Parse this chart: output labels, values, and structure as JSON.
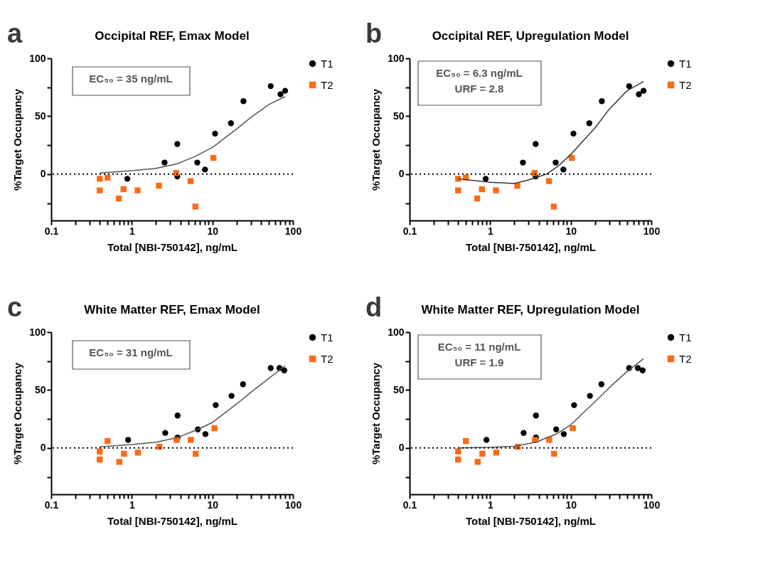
{
  "chart_data": [
    {
      "type": "scatter",
      "title": "Occipital REF, Emax Model",
      "xlabel": "Total [NBI-750142], ng/mL",
      "ylabel": "%Target Occupancy",
      "annotations": [
        "a",
        "EC₅₀ = 35 ng/mL"
      ],
      "log": "x",
      "xlim": [
        0.1,
        100
      ],
      "ylim": [
        -40,
        100
      ],
      "xticks": [
        0.1,
        {
          "value": 0.2,
          "label": null
        },
        {
          "value": 0.3,
          "label": null
        },
        {
          "value": 0.4,
          "label": null
        },
        {
          "value": 0.5,
          "label": null
        },
        {
          "value": 0.6,
          "label": null
        },
        {
          "value": 0.7,
          "label": null
        },
        {
          "value": 0.8,
          "label": null
        },
        {
          "value": 0.9,
          "label": null
        },
        1,
        {
          "value": 2,
          "label": null
        },
        {
          "value": 3,
          "label": null
        },
        {
          "value": 4,
          "label": null
        },
        {
          "value": 5,
          "label": null
        },
        {
          "value": 6,
          "label": null
        },
        {
          "value": 7,
          "label": null
        },
        {
          "value": 8,
          "label": null
        },
        {
          "value": 9,
          "label": null
        },
        10,
        {
          "value": 20,
          "label": null
        },
        {
          "value": 30,
          "label": null
        },
        {
          "value": 40,
          "label": null
        },
        {
          "value": 50,
          "label": null
        },
        {
          "value": 60,
          "label": null
        },
        {
          "value": 70,
          "label": null
        },
        {
          "value": 80,
          "label": null
        },
        {
          "value": 90,
          "label": null
        },
        100
      ],
      "yticks": [
        {
          "value": -25,
          "label": null
        },
        0,
        {
          "value": 25,
          "label": null
        },
        50,
        {
          "value": 75,
          "label": null
        },
        100
      ],
      "grid": false,
      "legend": "right",
      "ref_lines": [
        {
          "axis": "y",
          "value": 0,
          "line_style": "dotted",
          "color": "#000000"
        }
      ],
      "series": [
        {
          "name": "T1",
          "type": "scatter",
          "marker": "circle",
          "color": "#000000",
          "x": [
            0.88,
            2.55,
            3.67,
            3.67,
            6.5,
            8.1,
            10.8,
            17,
            24.3,
            53,
            70,
            80
          ],
          "values": [
            -4,
            10,
            26,
            -2,
            10,
            4,
            35,
            44,
            63,
            76,
            69,
            72
          ]
        },
        {
          "name": "T2",
          "marker": "square",
          "color": "#ff6a13",
          "x": [
            0.4,
            0.4,
            0.5,
            0.69,
            0.79,
            1.18,
            2.17,
            3.56,
            5.36,
            6.15,
            10.3
          ],
          "values": [
            -4,
            -14,
            -3,
            -21,
            -13,
            -14,
            -10,
            1,
            -6,
            -28,
            14
          ]
        },
        {
          "type": "line",
          "marker": "none",
          "line_style": "solid",
          "color": "#555555",
          "x": [
            0.4,
            1,
            2,
            3.67,
            6,
            10,
            20,
            30,
            50,
            80
          ],
          "values": [
            1,
            3,
            5,
            9,
            15,
            23,
            39,
            49,
            60,
            67
          ]
        }
      ]
    },
    {
      "type": "scatter",
      "title": "Occipital REF, Upregulation Model",
      "xlabel": "Total [NBI-750142], ng/mL",
      "ylabel": "%Target Occupancy",
      "annotations": [
        "b",
        "EC₅₀ = 6.3 ng/mL",
        "URF = 2.8"
      ],
      "log": "x",
      "xlim": [
        0.1,
        100
      ],
      "ylim": [
        -40,
        100
      ],
      "xticks": [
        0.1,
        {
          "value": 0.2,
          "label": null
        },
        {
          "value": 0.3,
          "label": null
        },
        {
          "value": 0.4,
          "label": null
        },
        {
          "value": 0.5,
          "label": null
        },
        {
          "value": 0.6,
          "label": null
        },
        {
          "value": 0.7,
          "label": null
        },
        {
          "value": 0.8,
          "label": null
        },
        {
          "value": 0.9,
          "label": null
        },
        1,
        {
          "value": 2,
          "label": null
        },
        {
          "value": 3,
          "label": null
        },
        {
          "value": 4,
          "label": null
        },
        {
          "value": 5,
          "label": null
        },
        {
          "value": 6,
          "label": null
        },
        {
          "value": 7,
          "label": null
        },
        {
          "value": 8,
          "label": null
        },
        {
          "value": 9,
          "label": null
        },
        10,
        {
          "value": 20,
          "label": null
        },
        {
          "value": 30,
          "label": null
        },
        {
          "value": 40,
          "label": null
        },
        {
          "value": 50,
          "label": null
        },
        {
          "value": 60,
          "label": null
        },
        {
          "value": 70,
          "label": null
        },
        {
          "value": 80,
          "label": null
        },
        {
          "value": 90,
          "label": null
        },
        100
      ],
      "yticks": [
        {
          "value": -25,
          "label": null
        },
        0,
        {
          "value": 25,
          "label": null
        },
        50,
        {
          "value": 75,
          "label": null
        },
        100
      ],
      "grid": false,
      "legend": "right",
      "ref_lines": [
        {
          "axis": "y",
          "value": 0,
          "line_style": "dotted",
          "color": "#000000"
        }
      ],
      "series": [
        {
          "name": "T1",
          "marker": "circle",
          "color": "#000000",
          "x": [
            0.88,
            2.55,
            3.67,
            3.67,
            6.5,
            8.1,
            10.8,
            17,
            24.3,
            53,
            70,
            80
          ],
          "values": [
            -4,
            10,
            26,
            -2,
            10,
            4,
            35,
            44,
            63,
            76,
            69,
            72
          ]
        },
        {
          "name": "T2",
          "marker": "square",
          "color": "#ff6a13",
          "x": [
            0.4,
            0.4,
            0.5,
            0.69,
            0.79,
            1.18,
            2.17,
            3.56,
            5.36,
            6.15,
            10.3
          ],
          "values": [
            -4,
            -14,
            -3,
            -21,
            -13,
            -14,
            -10,
            1,
            -6,
            -28,
            14
          ]
        },
        {
          "type": "line",
          "marker": "none",
          "line_style": "solid",
          "color": "#333333",
          "x": [
            0.4,
            1,
            2,
            3,
            5,
            7,
            10,
            20,
            30,
            50,
            80
          ],
          "values": [
            -4,
            -7,
            -8,
            -5,
            0,
            7,
            17,
            40,
            56,
            72,
            80
          ]
        }
      ]
    },
    {
      "type": "scatter",
      "title": "White Matter REF, Emax Model",
      "xlabel": "Total [NBI-750142], ng/mL",
      "ylabel": "%Target Occupancy",
      "annotations": [
        "c",
        "EC₅₀ = 31 ng/mL"
      ],
      "log": "x",
      "xlim": [
        0.1,
        100
      ],
      "ylim": [
        -40,
        100
      ],
      "xticks": [
        0.1,
        {
          "value": 0.2,
          "label": null
        },
        {
          "value": 0.3,
          "label": null
        },
        {
          "value": 0.4,
          "label": null
        },
        {
          "value": 0.5,
          "label": null
        },
        {
          "value": 0.6,
          "label": null
        },
        {
          "value": 0.7,
          "label": null
        },
        {
          "value": 0.8,
          "label": null
        },
        {
          "value": 0.9,
          "label": null
        },
        1,
        {
          "value": 2,
          "label": null
        },
        {
          "value": 3,
          "label": null
        },
        {
          "value": 4,
          "label": null
        },
        {
          "value": 5,
          "label": null
        },
        {
          "value": 6,
          "label": null
        },
        {
          "value": 7,
          "label": null
        },
        {
          "value": 8,
          "label": null
        },
        {
          "value": 9,
          "label": null
        },
        10,
        {
          "value": 20,
          "label": null
        },
        {
          "value": 30,
          "label": null
        },
        {
          "value": 40,
          "label": null
        },
        {
          "value": 50,
          "label": null
        },
        {
          "value": 60,
          "label": null
        },
        {
          "value": 70,
          "label": null
        },
        {
          "value": 80,
          "label": null
        },
        {
          "value": 90,
          "label": null
        },
        100
      ],
      "yticks": [
        {
          "value": -25,
          "label": null
        },
        0,
        {
          "value": 25,
          "label": null
        },
        50,
        {
          "value": 75,
          "label": null
        },
        100
      ],
      "grid": false,
      "legend": "right",
      "ref_lines": [
        {
          "axis": "y",
          "value": 0,
          "line_style": "dotted",
          "color": "#000000"
        }
      ],
      "series": [
        {
          "name": "T1",
          "marker": "circle",
          "color": "#000000",
          "x": [
            0.9,
            2.6,
            3.7,
            3.7,
            6.6,
            8.2,
            11,
            17.3,
            24,
            53,
            68,
            78
          ],
          "values": [
            7,
            13,
            28,
            9,
            16,
            12,
            37,
            45,
            55,
            69,
            69,
            67
          ]
        },
        {
          "name": "T2",
          "marker": "square",
          "color": "#ff6a13",
          "x": [
            0.4,
            0.4,
            0.5,
            0.7,
            0.8,
            1.19,
            2.2,
            3.6,
            5.4,
            6.2,
            10.6
          ],
          "values": [
            -3,
            -10,
            6,
            -12,
            -5,
            -4,
            1,
            7,
            7,
            -5,
            17
          ]
        },
        {
          "type": "line",
          "marker": "none",
          "line_style": "solid",
          "color": "#555555",
          "x": [
            0.4,
            1,
            2,
            3.7,
            6.6,
            10,
            20,
            30,
            50,
            80
          ],
          "values": [
            1,
            3,
            5,
            9,
            16,
            22,
            38,
            48,
            60,
            71
          ]
        }
      ]
    },
    {
      "type": "scatter",
      "title": "White Matter REF, Upregulation Model",
      "xlabel": "Total [NBI-750142], ng/mL",
      "ylabel": "%Target Occupancy",
      "annotations": [
        "d",
        "EC₅₀ = 11 ng/mL",
        "URF = 1.9"
      ],
      "log": "x",
      "xlim": [
        0.1,
        100
      ],
      "ylim": [
        -40,
        100
      ],
      "xticks": [
        0.1,
        {
          "value": 0.2,
          "label": null
        },
        {
          "value": 0.3,
          "label": null
        },
        {
          "value": 0.4,
          "label": null
        },
        {
          "value": 0.5,
          "label": null
        },
        {
          "value": 0.6,
          "label": null
        },
        {
          "value": 0.7,
          "label": null
        },
        {
          "value": 0.8,
          "label": null
        },
        {
          "value": 0.9,
          "label": null
        },
        1,
        {
          "value": 2,
          "label": null
        },
        {
          "value": 3,
          "label": null
        },
        {
          "value": 4,
          "label": null
        },
        {
          "value": 5,
          "label": null
        },
        {
          "value": 6,
          "label": null
        },
        {
          "value": 7,
          "label": null
        },
        {
          "value": 8,
          "label": null
        },
        {
          "value": 9,
          "label": null
        },
        10,
        {
          "value": 20,
          "label": null
        },
        {
          "value": 30,
          "label": null
        },
        {
          "value": 40,
          "label": null
        },
        {
          "value": 50,
          "label": null
        },
        {
          "value": 60,
          "label": null
        },
        {
          "value": 70,
          "label": null
        },
        {
          "value": 80,
          "label": null
        },
        {
          "value": 90,
          "label": null
        },
        100
      ],
      "yticks": [
        {
          "value": -25,
          "label": null
        },
        0,
        {
          "value": 25,
          "label": null
        },
        50,
        {
          "value": 75,
          "label": null
        },
        100
      ],
      "grid": false,
      "legend": "right",
      "ref_lines": [
        {
          "axis": "y",
          "value": 0,
          "line_style": "dotted",
          "color": "#000000"
        }
      ],
      "series": [
        {
          "name": "T1",
          "marker": "circle",
          "color": "#000000",
          "x": [
            0.9,
            2.6,
            3.7,
            3.7,
            6.6,
            8.2,
            11,
            17.3,
            24,
            53,
            68,
            78
          ],
          "values": [
            7,
            13,
            28,
            9,
            16,
            12,
            37,
            45,
            55,
            69,
            69,
            67
          ]
        },
        {
          "name": "T2",
          "marker": "square",
          "color": "#ff6a13",
          "x": [
            0.4,
            0.4,
            0.5,
            0.7,
            0.8,
            1.19,
            2.2,
            3.6,
            5.4,
            6.2,
            10.6
          ],
          "values": [
            -3,
            -10,
            6,
            -12,
            -5,
            -4,
            1,
            7,
            7,
            -5,
            17
          ]
        },
        {
          "type": "line",
          "marker": "none",
          "line_style": "solid",
          "color": "#555555",
          "x": [
            0.4,
            1,
            2,
            3.7,
            6.6,
            10,
            20,
            30,
            50,
            80
          ],
          "values": [
            0,
            0.5,
            1.5,
            5,
            12,
            20,
            40,
            52,
            66,
            77
          ]
        }
      ]
    }
  ]
}
